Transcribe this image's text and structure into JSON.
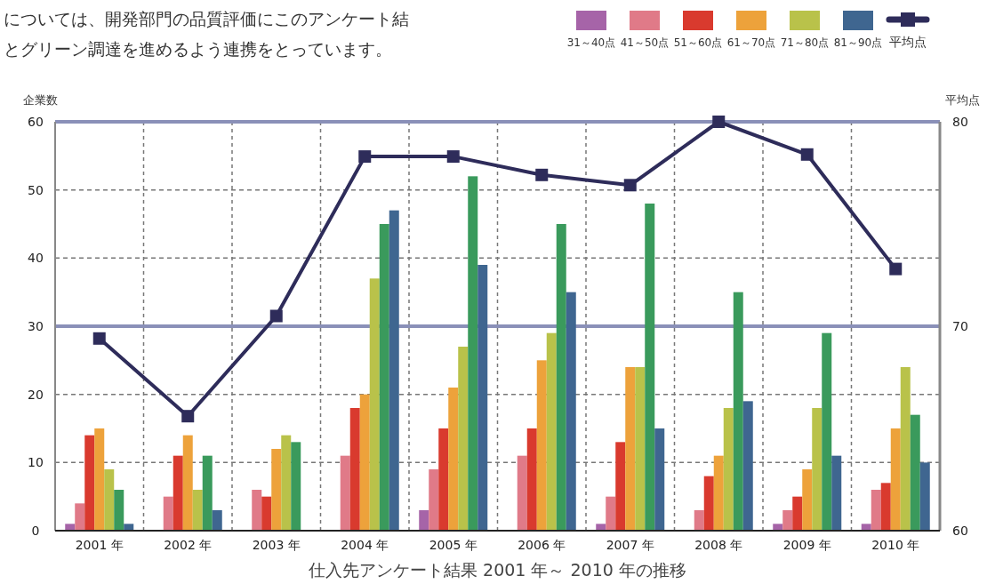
{
  "chart_data": {
    "type": "bar",
    "xlabel": "仕入先アンケート結果 2001 年～ 2010 年の推移",
    "ylabel": "企業数",
    "y2label": "平均点",
    "annotations": [
      "については、開発部門の品質評価にこのアンケート結",
      "とグリーン調達を進めるよう連携をとっています。"
    ],
    "categories": [
      "2001 年",
      "2002 年",
      "2003 年",
      "2004 年",
      "2005 年",
      "2006 年",
      "2007 年",
      "2008 年",
      "2009 年",
      "2010 年"
    ],
    "series": [
      {
        "name": "31～40点",
        "color": "#a664a8",
        "values": [
          1,
          0,
          0,
          0,
          3,
          0,
          1,
          0,
          1,
          1
        ]
      },
      {
        "name": "41～50点",
        "color": "#e07a88",
        "values": [
          4,
          5,
          6,
          11,
          9,
          11,
          5,
          3,
          3,
          6
        ]
      },
      {
        "name": "51～60点",
        "color": "#d93a2e",
        "values": [
          14,
          11,
          5,
          18,
          15,
          15,
          13,
          8,
          5,
          7
        ]
      },
      {
        "name": "61～70点",
        "color": "#eda23b",
        "values": [
          15,
          14,
          12,
          20,
          21,
          25,
          24,
          11,
          9,
          15
        ]
      },
      {
        "name": "71～80点",
        "color": "#b9c24a",
        "values": [
          9,
          6,
          14,
          37,
          27,
          29,
          24,
          18,
          18,
          24
        ]
      },
      {
        "color": "#3a9a5c",
        "values": [
          6,
          11,
          13,
          45,
          52,
          45,
          48,
          35,
          29,
          17
        ]
      },
      {
        "name": "81～90点",
        "color": "#3f6690",
        "values": [
          1,
          3,
          0,
          47,
          39,
          35,
          15,
          19,
          11,
          10
        ]
      },
      {
        "name": "平均点",
        "type": "line",
        "axis": "y2",
        "color": "#2e2c5a",
        "values": [
          69.4,
          65.6,
          70.5,
          78.3,
          78.3,
          77.4,
          76.9,
          80,
          78.4,
          72.8
        ]
      }
    ],
    "ylim": [
      0,
      60
    ],
    "yticks": [
      0,
      10,
      20,
      30,
      40,
      50,
      60
    ],
    "y2lim": [
      60,
      80
    ],
    "y2ticks": [
      60,
      70,
      80
    ],
    "ref_lines": [
      {
        "axis": "y2",
        "value": 80,
        "color": "#8a90b8"
      },
      {
        "axis": "y2",
        "value": 70,
        "color": "#8a90b8"
      }
    ],
    "grid": true,
    "legend": "top right",
    "marker": "square"
  }
}
